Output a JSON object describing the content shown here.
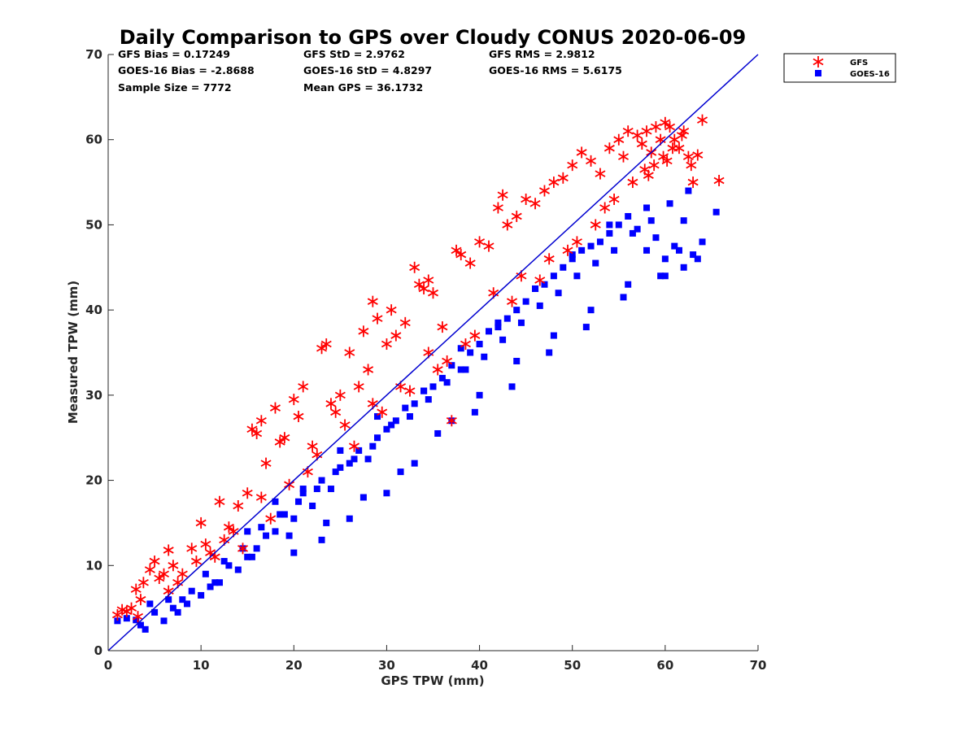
{
  "chart_data": {
    "type": "scatter",
    "title": "Daily Comparison to GPS over Cloudy CONUS 2020-06-09",
    "xlabel": "GPS TPW (mm)",
    "ylabel": "Measured TPW (mm)",
    "xlim": [
      0,
      70
    ],
    "ylim": [
      0,
      70
    ],
    "xticks": [
      "0",
      "10",
      "20",
      "30",
      "40",
      "50",
      "60",
      "70"
    ],
    "yticks": [
      "0",
      "10",
      "20",
      "30",
      "40",
      "50",
      "60",
      "70"
    ],
    "grid": false,
    "legend_position": "outside-top-right",
    "stats": [
      "GFS Bias = 0.17249",
      "GFS StD = 2.9762",
      "GFS RMS = 2.9812",
      "GOES-16 Bias = -2.8688",
      "GOES-16 StD = 4.8297",
      "GOES-16 RMS = 5.6175",
      "Sample Size = 7772",
      "Mean GPS = 36.1732"
    ],
    "reference_line": {
      "x": [
        0,
        70
      ],
      "y": [
        0,
        70
      ],
      "color": "#0000d0"
    },
    "series": [
      {
        "name": "GFS",
        "marker": "asterisk",
        "color": "#ff0000",
        "x": [
          1.0,
          1.5,
          2.0,
          2.5,
          3.0,
          3.2,
          3.8,
          4.5,
          5.0,
          5.5,
          6.0,
          6.5,
          7.0,
          8.0,
          9.0,
          10.0,
          10.5,
          11.0,
          12.0,
          12.5,
          13.0,
          14.0,
          15.0,
          15.5,
          16.0,
          16.5,
          17.0,
          18.0,
          18.5,
          19.0,
          20.0,
          20.5,
          21.0,
          22.0,
          23.0,
          23.5,
          24.0,
          24.5,
          25.0,
          26.0,
          27.0,
          27.5,
          28.0,
          28.5,
          29.0,
          30.0,
          30.5,
          31.0,
          32.0,
          33.0,
          33.5,
          34.0,
          34.5,
          35.0,
          36.0,
          37.0,
          37.5,
          38.0,
          39.0,
          40.0,
          41.0,
          42.0,
          42.5,
          43.0,
          44.0,
          45.0,
          46.0,
          47.0,
          48.0,
          49.0,
          50.0,
          51.0,
          52.0,
          53.0,
          54.0,
          55.0,
          55.5,
          56.0,
          57.0,
          57.5,
          58.0,
          58.5,
          59.0,
          59.5,
          60.0,
          60.5,
          61.0,
          61.5,
          62.0,
          62.5,
          63.0,
          63.5,
          64.0,
          65.8,
          7.5,
          9.5,
          11.5,
          13.5,
          16.5,
          19.5,
          22.5,
          25.5,
          28.5,
          31.5,
          34.5,
          36.5,
          39.5,
          41.5,
          44.5,
          47.5,
          50.5,
          53.5,
          56.5,
          58.8,
          60.8,
          62.8,
          3.5,
          6.5,
          14.5,
          17.5,
          21.5,
          26.5,
          29.5,
          32.5,
          35.5,
          38.5,
          43.5,
          46.5,
          49.5,
          52.5,
          54.5,
          57.8,
          59.8,
          61.8,
          60.2,
          58.2
        ],
        "y": [
          4.2,
          4.8,
          4.6,
          5.0,
          7.2,
          4.0,
          8.0,
          9.5,
          10.5,
          8.5,
          9.0,
          11.8,
          10.0,
          9.0,
          12.0,
          15.0,
          12.5,
          11.5,
          17.5,
          13.0,
          14.5,
          17.0,
          18.5,
          26.0,
          25.5,
          27.0,
          22.0,
          28.5,
          24.5,
          25.0,
          29.5,
          27.5,
          31.0,
          24.0,
          35.5,
          36.0,
          29.0,
          28.0,
          30.0,
          35.0,
          31.0,
          37.5,
          33.0,
          41.0,
          39.0,
          36.0,
          40.0,
          37.0,
          38.5,
          45.0,
          43.0,
          42.5,
          43.5,
          42.0,
          38.0,
          27.0,
          47.0,
          46.5,
          45.5,
          48.0,
          47.5,
          52.0,
          53.5,
          50.0,
          51.0,
          53.0,
          52.5,
          54.0,
          55.0,
          55.5,
          57.0,
          58.5,
          57.5,
          56.0,
          59.0,
          60.0,
          58.0,
          61.0,
          60.5,
          59.5,
          61.0,
          58.5,
          61.5,
          60.0,
          62.0,
          61.5,
          60.0,
          59.0,
          61.0,
          58.0,
          55.0,
          58.2,
          62.3,
          55.2,
          8.0,
          10.5,
          11.0,
          14.0,
          18.0,
          19.5,
          23.0,
          26.5,
          29.0,
          31.0,
          35.0,
          34.0,
          37.0,
          42.0,
          44.0,
          46.0,
          48.0,
          52.0,
          55.0,
          57.0,
          59.0,
          57.0,
          6.0,
          7.0,
          12.0,
          15.5,
          21.0,
          24.0,
          28.0,
          30.5,
          33.0,
          36.0,
          41.0,
          43.5,
          47.0,
          50.0,
          53.0,
          56.5,
          58.0,
          60.5,
          57.5,
          55.8
        ]
      },
      {
        "name": "GOES-16",
        "marker": "square",
        "color": "#0000ff",
        "x": [
          1.0,
          2.0,
          3.0,
          4.0,
          5.0,
          6.0,
          7.0,
          8.0,
          9.0,
          10.0,
          11.0,
          12.0,
          13.0,
          14.0,
          15.0,
          16.0,
          17.0,
          18.0,
          19.0,
          20.0,
          21.0,
          22.0,
          23.0,
          24.0,
          25.0,
          26.0,
          27.0,
          28.0,
          29.0,
          30.0,
          31.0,
          32.0,
          33.0,
          34.0,
          35.0,
          36.0,
          37.0,
          38.0,
          39.0,
          40.0,
          41.0,
          42.0,
          43.0,
          44.0,
          45.0,
          46.0,
          47.0,
          48.0,
          49.0,
          50.0,
          51.0,
          52.0,
          53.0,
          54.0,
          55.0,
          56.0,
          57.0,
          58.0,
          59.0,
          60.0,
          61.0,
          62.0,
          63.0,
          64.0,
          65.5,
          4.5,
          6.5,
          8.5,
          10.5,
          12.5,
          14.5,
          16.5,
          18.5,
          20.5,
          22.5,
          24.5,
          26.5,
          28.5,
          30.5,
          32.5,
          34.5,
          36.5,
          38.5,
          40.5,
          42.5,
          44.5,
          46.5,
          48.5,
          50.5,
          52.5,
          54.5,
          56.5,
          58.5,
          60.5,
          62.5,
          3.5,
          7.5,
          11.5,
          15.5,
          19.5,
          23.5,
          27.5,
          31.5,
          35.5,
          39.5,
          43.5,
          47.5,
          51.5,
          55.5,
          59.5,
          61.5,
          63.5,
          20.0,
          23.0,
          26.0,
          30.0,
          33.0,
          37.0,
          40.0,
          44.0,
          48.0,
          52.0,
          56.0,
          60.0,
          15.0,
          18.0,
          21.0,
          25.0,
          29.0,
          34.0,
          38.0,
          42.0,
          46.0,
          50.0,
          54.0,
          58.0,
          62.0
        ],
        "y": [
          3.5,
          3.8,
          3.6,
          2.5,
          4.5,
          3.5,
          5.0,
          6.0,
          7.0,
          6.5,
          7.5,
          8.0,
          10.0,
          9.5,
          11.0,
          12.0,
          13.5,
          14.0,
          16.0,
          15.5,
          18.5,
          17.0,
          20.0,
          19.0,
          21.5,
          22.0,
          23.5,
          22.5,
          25.0,
          26.0,
          27.0,
          28.5,
          29.0,
          30.5,
          31.0,
          32.0,
          33.5,
          33.0,
          35.0,
          36.0,
          37.5,
          38.0,
          39.0,
          40.0,
          41.0,
          42.5,
          43.0,
          44.0,
          45.0,
          46.0,
          47.0,
          47.5,
          48.0,
          49.0,
          50.0,
          51.0,
          49.5,
          47.0,
          48.5,
          46.0,
          47.5,
          45.0,
          46.5,
          48.0,
          51.5,
          5.5,
          6.0,
          5.5,
          9.0,
          10.5,
          12.0,
          14.5,
          16.0,
          17.5,
          19.0,
          21.0,
          22.5,
          24.0,
          26.5,
          27.5,
          29.5,
          31.5,
          33.0,
          34.5,
          36.5,
          38.5,
          40.5,
          42.0,
          44.0,
          45.5,
          47.0,
          49.0,
          50.5,
          52.5,
          54.0,
          3.0,
          4.5,
          8.0,
          11.0,
          13.5,
          15.0,
          18.0,
          21.0,
          25.5,
          28.0,
          31.0,
          35.0,
          38.0,
          41.5,
          44.0,
          47.0,
          46.0,
          11.5,
          13.0,
          15.5,
          18.5,
          22.0,
          27.0,
          30.0,
          34.0,
          37.0,
          40.0,
          43.0,
          44.0,
          14.0,
          17.5,
          19.0,
          23.5,
          27.5,
          30.5,
          35.5,
          38.5,
          42.5,
          46.5,
          50.0,
          52.0,
          50.5
        ]
      }
    ]
  }
}
